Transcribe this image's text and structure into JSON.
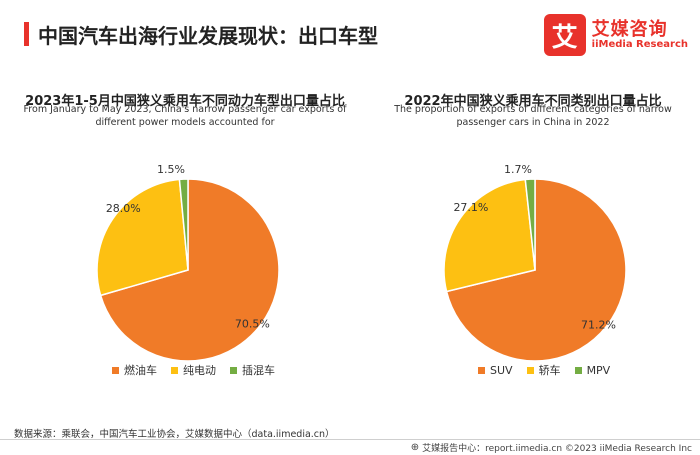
{
  "header": {
    "title": "中国汽车出海行业发展现状：出口车型",
    "accent_color": "#e8322b"
  },
  "brand": {
    "logo_char": "艾",
    "name": "艾媒咨询",
    "sub": "iiMedia Research",
    "color": "#e8322b"
  },
  "chart_data": [
    {
      "type": "pie",
      "title": "2023年1-5月中国狭义乘用车不同动力车型出口量占比",
      "subtitle": "From January to May 2023, China's narrow passenger car exports of different power models accounted for",
      "categories": [
        "燃油车",
        "纯电动",
        "插混车"
      ],
      "values": [
        70.5,
        28.0,
        1.5
      ],
      "value_labels": [
        "70.5%",
        "28.0%",
        "1.5%"
      ],
      "colors": [
        "#f07b28",
        "#fdc012",
        "#74ad43"
      ],
      "legend_position": "bottom"
    },
    {
      "type": "pie",
      "title": "2022年中国狭义乘用车不同类别出口量占比",
      "subtitle": "The proportion of exports of different categories of narrow passenger cars in China in 2022",
      "categories": [
        "SUV",
        "轿车",
        "MPV"
      ],
      "values": [
        71.2,
        27.1,
        1.7
      ],
      "value_labels": [
        "71.2%",
        "27.1%",
        "1.7%"
      ],
      "colors": [
        "#f07b28",
        "#fdc012",
        "#74ad43"
      ],
      "legend_position": "bottom"
    }
  ],
  "source": "数据来源：乘联会，中国汽车工业协会，艾媒数据中心（data.iimedia.cn）",
  "footer": {
    "icon": "search-icon",
    "text": "艾媒报告中心：report.iimedia.cn   ©2023  iiMedia Research  Inc"
  }
}
